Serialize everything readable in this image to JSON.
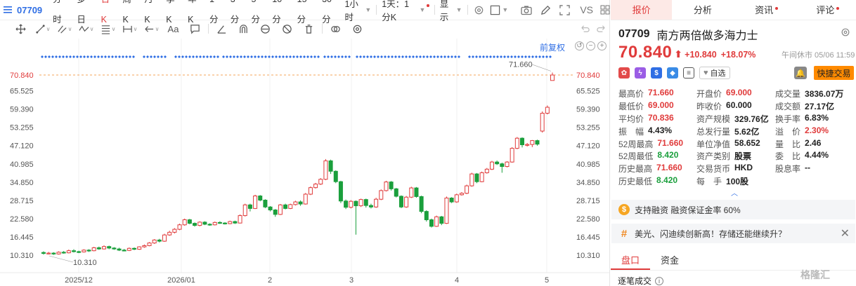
{
  "topbar": {
    "code": "07709",
    "periods": [
      "分时",
      "多日",
      "日K",
      "周K",
      "月K",
      "季K",
      "年K",
      "1分",
      "3分",
      "5分",
      "10分",
      "15分",
      "30分"
    ],
    "active_period": "日K",
    "hour_dropdown": "1小时",
    "day_dropdown": "1天：1分K",
    "display_dropdown": "显示",
    "vs_label": "VS"
  },
  "drawbar": {
    "aa_label": "Aa"
  },
  "chart": {
    "adjust_label": "前复权",
    "last_price_tag": "70.840",
    "high_annotation": "71.660",
    "low_annotation": "10.310",
    "colors": {
      "up": "#e03b3b",
      "down": "#1a9f3c",
      "dash": "#f3a55b",
      "dots": "#2f6ee4"
    }
  },
  "chart_data": {
    "type": "candlestick",
    "y_ticks": [
      "70.840",
      "65.525",
      "59.390",
      "53.255",
      "47.120",
      "40.985",
      "34.850",
      "28.715",
      "22.580",
      "16.445",
      "10.310"
    ],
    "x_labels": [
      "2025/12",
      "2026/01",
      "2",
      "3",
      "4",
      "5"
    ],
    "ylim": [
      10.31,
      70.84
    ],
    "last_price": 70.84,
    "period_high": 71.66,
    "period_low": 10.31,
    "candles": [
      {
        "o": 11.2,
        "c": 10.9,
        "h": 11.6,
        "l": 10.5
      },
      {
        "o": 10.9,
        "c": 11.0,
        "h": 11.4,
        "l": 10.6
      },
      {
        "o": 11.0,
        "c": 10.7,
        "h": 11.3,
        "l": 10.4
      },
      {
        "o": 10.7,
        "c": 11.3,
        "h": 11.6,
        "l": 10.5
      },
      {
        "o": 11.3,
        "c": 11.1,
        "h": 11.7,
        "l": 10.8
      },
      {
        "o": 11.1,
        "c": 11.8,
        "h": 12.2,
        "l": 10.9
      },
      {
        "o": 11.8,
        "c": 11.5,
        "h": 12.3,
        "l": 11.2
      },
      {
        "o": 11.5,
        "c": 11.4,
        "h": 11.8,
        "l": 11.0
      },
      {
        "o": 11.4,
        "c": 12.0,
        "h": 12.3,
        "l": 11.2
      },
      {
        "o": 12.0,
        "c": 11.8,
        "h": 12.3,
        "l": 11.4
      },
      {
        "o": 11.8,
        "c": 12.8,
        "h": 13.1,
        "l": 11.6
      },
      {
        "o": 12.8,
        "c": 12.4,
        "h": 13.2,
        "l": 12.1
      },
      {
        "o": 12.4,
        "c": 13.2,
        "h": 13.6,
        "l": 12.2
      },
      {
        "o": 13.2,
        "c": 12.7,
        "h": 13.5,
        "l": 12.3
      },
      {
        "o": 12.7,
        "c": 12.4,
        "h": 13.0,
        "l": 12.1
      },
      {
        "o": 12.4,
        "c": 12.0,
        "h": 12.8,
        "l": 11.7
      },
      {
        "o": 12.0,
        "c": 11.9,
        "h": 12.4,
        "l": 11.6
      },
      {
        "o": 11.9,
        "c": 12.6,
        "h": 12.9,
        "l": 11.7
      },
      {
        "o": 12.6,
        "c": 12.3,
        "h": 12.9,
        "l": 12.0
      },
      {
        "o": 12.3,
        "c": 13.1,
        "h": 13.3,
        "l": 12.1
      },
      {
        "o": 13.1,
        "c": 13.5,
        "h": 13.9,
        "l": 12.8
      },
      {
        "o": 13.5,
        "c": 14.4,
        "h": 14.7,
        "l": 13.3
      },
      {
        "o": 14.4,
        "c": 15.4,
        "h": 15.7,
        "l": 14.1
      },
      {
        "o": 15.4,
        "c": 15.0,
        "h": 15.8,
        "l": 14.6
      },
      {
        "o": 15.0,
        "c": 17.1,
        "h": 17.5,
        "l": 14.8
      },
      {
        "o": 17.1,
        "c": 18.0,
        "h": 18.5,
        "l": 16.8
      },
      {
        "o": 18.0,
        "c": 19.0,
        "h": 19.4,
        "l": 17.6
      },
      {
        "o": 19.0,
        "c": 20.5,
        "h": 20.9,
        "l": 18.7
      },
      {
        "o": 20.5,
        "c": 22.2,
        "h": 22.6,
        "l": 20.2
      },
      {
        "o": 22.2,
        "c": 21.0,
        "h": 22.5,
        "l": 20.7
      },
      {
        "o": 21.0,
        "c": 20.3,
        "h": 21.3,
        "l": 19.9
      },
      {
        "o": 20.3,
        "c": 21.4,
        "h": 21.7,
        "l": 20.0
      },
      {
        "o": 21.4,
        "c": 20.7,
        "h": 21.7,
        "l": 20.4
      },
      {
        "o": 20.7,
        "c": 20.5,
        "h": 21.0,
        "l": 20.2
      },
      {
        "o": 20.5,
        "c": 21.3,
        "h": 21.6,
        "l": 20.3
      },
      {
        "o": 21.3,
        "c": 21.1,
        "h": 21.7,
        "l": 20.8
      },
      {
        "o": 21.1,
        "c": 20.9,
        "h": 21.4,
        "l": 20.6
      },
      {
        "o": 20.9,
        "c": 21.6,
        "h": 21.9,
        "l": 20.7
      },
      {
        "o": 21.6,
        "c": 21.1,
        "h": 21.9,
        "l": 20.8
      },
      {
        "o": 21.1,
        "c": 23.6,
        "h": 24.0,
        "l": 21.0
      },
      {
        "o": 23.6,
        "c": 27.2,
        "h": 27.6,
        "l": 23.3
      },
      {
        "o": 27.2,
        "c": 26.0,
        "h": 27.6,
        "l": 25.0
      },
      {
        "o": 26.0,
        "c": 30.2,
        "h": 30.6,
        "l": 25.8
      },
      {
        "o": 30.2,
        "c": 28.8,
        "h": 30.5,
        "l": 28.4
      },
      {
        "o": 28.8,
        "c": 26.5,
        "h": 29.1,
        "l": 26.1
      },
      {
        "o": 26.5,
        "c": 25.5,
        "h": 26.8,
        "l": 25.0
      },
      {
        "o": 25.5,
        "c": 24.0,
        "h": 25.8,
        "l": 23.2
      },
      {
        "o": 24.0,
        "c": 27.2,
        "h": 27.5,
        "l": 23.8
      },
      {
        "o": 27.2,
        "c": 26.0,
        "h": 27.6,
        "l": 25.7
      },
      {
        "o": 26.0,
        "c": 27.3,
        "h": 27.6,
        "l": 25.8
      },
      {
        "o": 27.3,
        "c": 28.2,
        "h": 28.6,
        "l": 27.0
      },
      {
        "o": 28.2,
        "c": 27.5,
        "h": 28.7,
        "l": 26.9
      },
      {
        "o": 27.5,
        "c": 30.8,
        "h": 31.2,
        "l": 27.3
      },
      {
        "o": 30.8,
        "c": 33.0,
        "h": 33.4,
        "l": 30.5
      },
      {
        "o": 33.0,
        "c": 34.2,
        "h": 34.6,
        "l": 32.7
      },
      {
        "o": 34.2,
        "c": 35.8,
        "h": 36.2,
        "l": 33.9
      },
      {
        "o": 35.8,
        "c": 42.0,
        "h": 42.6,
        "l": 35.5
      },
      {
        "o": 42.0,
        "c": 38.5,
        "h": 42.4,
        "l": 37.6
      },
      {
        "o": 38.5,
        "c": 35.0,
        "h": 38.8,
        "l": 34.5
      },
      {
        "o": 35.0,
        "c": 28.5,
        "h": 35.3,
        "l": 27.8
      },
      {
        "o": 28.5,
        "c": 26.4,
        "h": 29.0,
        "l": 25.8
      },
      {
        "o": 26.4,
        "c": 28.4,
        "h": 28.8,
        "l": 26.0
      },
      {
        "o": 28.4,
        "c": 26.9,
        "h": 28.7,
        "l": 17.2
      },
      {
        "o": 26.9,
        "c": 29.0,
        "h": 29.3,
        "l": 26.5
      },
      {
        "o": 29.0,
        "c": 27.0,
        "h": 29.3,
        "l": 26.3
      },
      {
        "o": 27.0,
        "c": 26.5,
        "h": 27.6,
        "l": 26.0
      },
      {
        "o": 26.5,
        "c": 29.1,
        "h": 29.6,
        "l": 26.2
      },
      {
        "o": 29.1,
        "c": 32.0,
        "h": 32.4,
        "l": 28.8
      },
      {
        "o": 32.0,
        "c": 34.9,
        "h": 35.3,
        "l": 31.7
      },
      {
        "o": 34.9,
        "c": 32.6,
        "h": 35.2,
        "l": 32.0
      },
      {
        "o": 32.6,
        "c": 30.1,
        "h": 32.9,
        "l": 29.7
      },
      {
        "o": 30.1,
        "c": 26.5,
        "h": 30.4,
        "l": 26.1
      },
      {
        "o": 26.5,
        "c": 29.8,
        "h": 30.2,
        "l": 26.2
      },
      {
        "o": 29.8,
        "c": 32.9,
        "h": 33.3,
        "l": 29.5
      },
      {
        "o": 32.9,
        "c": 30.0,
        "h": 33.2,
        "l": 29.6
      },
      {
        "o": 30.0,
        "c": 25.0,
        "h": 30.3,
        "l": 24.4
      },
      {
        "o": 25.0,
        "c": 22.2,
        "h": 25.4,
        "l": 21.6
      },
      {
        "o": 22.2,
        "c": 20.0,
        "h": 22.6,
        "l": 19.6
      },
      {
        "o": 20.0,
        "c": 23.2,
        "h": 23.6,
        "l": 19.8
      },
      {
        "o": 23.2,
        "c": 21.0,
        "h": 23.5,
        "l": 20.4
      },
      {
        "o": 21.0,
        "c": 29.5,
        "h": 30.0,
        "l": 20.8
      },
      {
        "o": 29.5,
        "c": 28.2,
        "h": 29.8,
        "l": 27.8
      },
      {
        "o": 28.2,
        "c": 30.6,
        "h": 31.0,
        "l": 27.9
      },
      {
        "o": 30.6,
        "c": 31.1,
        "h": 31.5,
        "l": 30.3
      },
      {
        "o": 31.1,
        "c": 33.6,
        "h": 34.0,
        "l": 30.8
      },
      {
        "o": 33.6,
        "c": 37.6,
        "h": 38.0,
        "l": 33.3
      },
      {
        "o": 37.6,
        "c": 35.0,
        "h": 37.9,
        "l": 34.5
      },
      {
        "o": 35.0,
        "c": 38.0,
        "h": 38.4,
        "l": 34.8
      },
      {
        "o": 38.0,
        "c": 39.2,
        "h": 39.6,
        "l": 37.7
      },
      {
        "o": 39.2,
        "c": 41.6,
        "h": 42.0,
        "l": 38.9
      },
      {
        "o": 41.6,
        "c": 41.0,
        "h": 42.1,
        "l": 40.6
      },
      {
        "o": 41.0,
        "c": 40.1,
        "h": 41.4,
        "l": 38.0
      },
      {
        "o": 40.1,
        "c": 41.6,
        "h": 41.9,
        "l": 39.8
      },
      {
        "o": 41.6,
        "c": 46.2,
        "h": 46.6,
        "l": 41.4
      },
      {
        "o": 46.2,
        "c": 49.6,
        "h": 50.0,
        "l": 45.9
      },
      {
        "o": 49.6,
        "c": 47.4,
        "h": 49.9,
        "l": 46.5
      },
      {
        "o": 47.4,
        "c": 47.5,
        "h": 48.0,
        "l": 46.8
      },
      {
        "o": 47.5,
        "c": 48.8,
        "h": 49.0,
        "l": 46.6
      },
      {
        "o": 48.8,
        "c": 47.6,
        "h": 49.1,
        "l": 47.1
      },
      {
        "o": 52.0,
        "c": 58.0,
        "h": 58.6,
        "l": 51.5
      },
      {
        "o": 58.0,
        "c": 60.0,
        "h": 60.6,
        "l": 57.6
      },
      {
        "o": 69.0,
        "c": 70.84,
        "h": 71.66,
        "l": 69.0
      }
    ]
  },
  "tabs": [
    "报价",
    "分析",
    "资讯",
    "评论"
  ],
  "active_tab": "报价",
  "stock": {
    "code": "07709",
    "name": "南方两倍做多海力士",
    "price": "70.840",
    "arrow": "⬆",
    "change": "+10.840",
    "change_pct": "+18.07%",
    "status": "午间休市 05/06 11:59"
  },
  "badges": {
    "watch_label": "自选",
    "trade_label": "快捷交易"
  },
  "stats": [
    [
      {
        "k": "最高价",
        "v": "71.660",
        "c": "red"
      },
      {
        "k": "开盘价",
        "v": "69.000",
        "c": "red"
      },
      {
        "k": "成交量",
        "v": "3836.07万",
        "c": ""
      }
    ],
    [
      {
        "k": "最低价",
        "v": "69.000",
        "c": "red"
      },
      {
        "k": "昨收价",
        "v": "60.000",
        "c": ""
      },
      {
        "k": "成交额",
        "v": "27.17亿",
        "c": ""
      }
    ],
    [
      {
        "k": "平均价",
        "v": "70.836",
        "c": "red"
      },
      {
        "k": "资产规模",
        "v": "329.76亿",
        "c": ""
      },
      {
        "k": "换手率",
        "v": "6.83%",
        "c": ""
      }
    ],
    [
      {
        "k": "振　幅",
        "v": "4.43%",
        "c": ""
      },
      {
        "k": "总发行量",
        "v": "5.62亿",
        "c": ""
      },
      {
        "k": "溢　价",
        "v": "2.30%",
        "c": "red"
      }
    ],
    [
      {
        "k": "52周最高",
        "v": "71.660",
        "c": "red"
      },
      {
        "k": "单位净值",
        "v": "58.652",
        "c": ""
      },
      {
        "k": "量　比",
        "v": "2.46",
        "c": ""
      }
    ],
    [
      {
        "k": "52周最低",
        "v": "8.420",
        "c": "green"
      },
      {
        "k": "资产类别",
        "v": "股票",
        "c": ""
      },
      {
        "k": "委　比",
        "v": "4.44%",
        "c": ""
      }
    ],
    [
      {
        "k": "历史最高",
        "v": "71.660",
        "c": "red"
      },
      {
        "k": "交易货币",
        "v": "HKD",
        "c": ""
      },
      {
        "k": "股息率",
        "v": "--",
        "c": ""
      }
    ],
    [
      {
        "k": "历史最低",
        "v": "8.420",
        "c": "green"
      },
      {
        "k": "每　手",
        "v": "100股",
        "c": ""
      },
      {
        "k": "",
        "v": "",
        "c": ""
      }
    ]
  ],
  "notices": {
    "margin": "支持融资 融资保证金率 60%",
    "topic": "美光、闪迪续创新高！存储还能继续升？"
  },
  "subtabs": [
    "盘口",
    "资金"
  ],
  "active_subtab": "盘口",
  "tick_title": "逐笔成交",
  "watermark": "格隆汇"
}
